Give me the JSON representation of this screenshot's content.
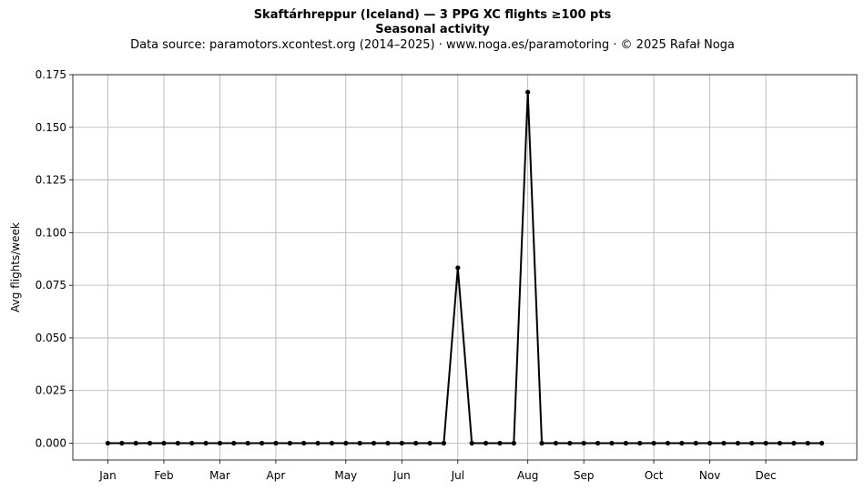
{
  "header": {
    "title": "Skaftárhreppur (Iceland)  —  3 PPG XC flights ≥100 pts",
    "subtitle": "Seasonal activity",
    "source": "Data source: paramotors.xcontest.org (2014–2025)  ·  www.noga.es/paramotoring  ·  © 2025 Rafał Noga"
  },
  "chart_data": {
    "type": "line",
    "ylabel": "Avg flights/week",
    "xlabel": "",
    "ylim": [
      -0.008,
      0.175
    ],
    "xlim": [
      -2.5,
      53.5
    ],
    "grid": true,
    "line_color": "#000000",
    "grid_color": "#b0b0b0",
    "y_ticks": [
      0.0,
      0.025,
      0.05,
      0.075,
      0.1,
      0.125,
      0.15,
      0.175
    ],
    "y_tick_labels": [
      "0.000",
      "0.025",
      "0.050",
      "0.075",
      "0.100",
      "0.125",
      "0.150",
      "0.175"
    ],
    "x_ticks": [
      0,
      4,
      8,
      12,
      17,
      21,
      25,
      30,
      34,
      39,
      43,
      47
    ],
    "x_tick_labels": [
      "Jan",
      "Feb",
      "Mar",
      "Apr",
      "May",
      "Jun",
      "Jul",
      "Aug",
      "Sep",
      "Oct",
      "Nov",
      "Dec"
    ],
    "x": [
      0,
      1,
      2,
      3,
      4,
      5,
      6,
      7,
      8,
      9,
      10,
      11,
      12,
      13,
      14,
      15,
      16,
      17,
      18,
      19,
      20,
      21,
      22,
      23,
      24,
      25,
      26,
      27,
      28,
      29,
      30,
      31,
      32,
      33,
      34,
      35,
      36,
      37,
      38,
      39,
      40,
      41,
      42,
      43,
      44,
      45,
      46,
      47,
      48,
      49,
      50,
      51
    ],
    "values": [
      0,
      0,
      0,
      0,
      0,
      0,
      0,
      0,
      0,
      0,
      0,
      0,
      0,
      0,
      0,
      0,
      0,
      0,
      0,
      0,
      0,
      0,
      0,
      0,
      0,
      0.0833,
      0,
      0,
      0,
      0,
      0.1667,
      0,
      0,
      0,
      0,
      0,
      0,
      0,
      0,
      0,
      0,
      0,
      0,
      0,
      0,
      0,
      0,
      0,
      0,
      0,
      0,
      0
    ]
  }
}
